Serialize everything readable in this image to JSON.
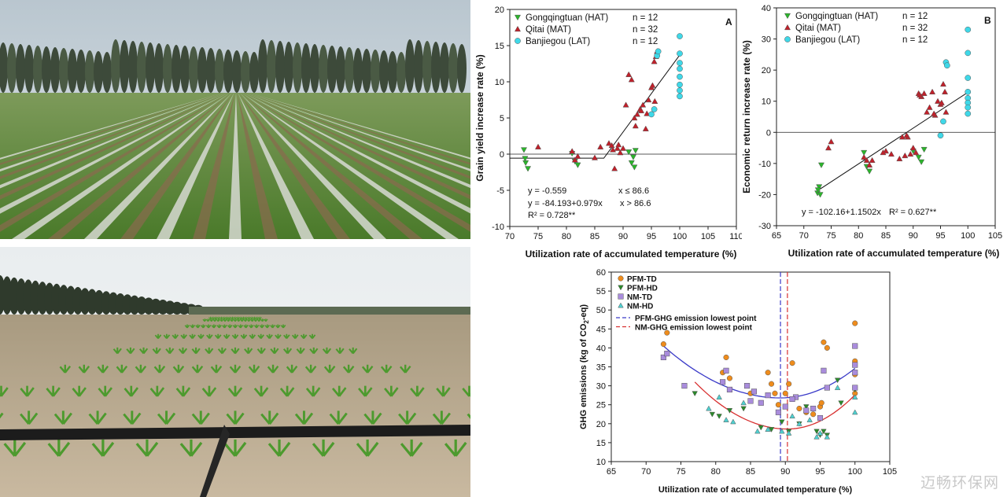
{
  "photos": [
    {
      "name": "maize-field-photo-top",
      "description_icon": "cornfield-plastic-mulch-poplar-windbreak"
    },
    {
      "name": "maize-field-photo-bottom",
      "description_icon": "maize-seedlings-drip-irrigation-pipe"
    }
  ],
  "watermark": "迈畅环保网",
  "colors": {
    "hat": "#2bb52b",
    "mat": "#c0202a",
    "lat": "#3fd8e8",
    "pfm_td": "#ee8c1c",
    "pfm_hd": "#2b8a2b",
    "nm_td": "#a98cdc",
    "nm_hd": "#4fd0d0",
    "pfm_line": "#3a3ac8",
    "nm_line": "#d83030"
  },
  "chart_data": [
    {
      "id": "A",
      "type": "scatter",
      "panel_label": "A",
      "xlabel": "Utilization rate of accumulated temperature (%)",
      "ylabel": "Grain yield increase rate (%)",
      "xlim": [
        70,
        110
      ],
      "ylim": [
        -10,
        20
      ],
      "xticks": [
        "70",
        "75",
        "80",
        "85",
        "90",
        "95",
        "100",
        "105",
        "110"
      ],
      "yticks": [
        "-10",
        "-5",
        "0",
        "5",
        "10",
        "15",
        "20"
      ],
      "legend": [
        {
          "series": "hat",
          "label": "Gongqingtuan (HAT)",
          "n": "n = 12"
        },
        {
          "series": "mat",
          "label": "Qitai (MAT)",
          "n": "n = 32"
        },
        {
          "series": "lat",
          "label": "Banjiegou (LAT)",
          "n": "n = 12"
        }
      ],
      "annotations": [
        {
          "text": "y = -0.559",
          "cond": "x ≤ 86.6"
        },
        {
          "text": "y = -84.193+0.979x",
          "cond": "x > 86.6"
        },
        {
          "text": "R² = 0.728**",
          "cond": ""
        }
      ],
      "fit": [
        [
          70,
          -0.559
        ],
        [
          86.6,
          -0.559
        ],
        [
          100,
          13.7
        ]
      ],
      "series": [
        {
          "name": "Gongqingtuan (HAT)",
          "key": "hat",
          "marker": "tri-down",
          "x": [
            72.5,
            72.8,
            73.2,
            81.0,
            81.5,
            91.0,
            91.5,
            92.0,
            92.2,
            72.7,
            82.0,
            91.8
          ],
          "y": [
            0.6,
            -1.2,
            -2.0,
            0.1,
            -1.0,
            0.3,
            -1.2,
            -1.8,
            0.5,
            -0.6,
            -1.5,
            -0.4
          ]
        },
        {
          "name": "Qitai (MAT)",
          "key": "mat",
          "marker": "tri-up",
          "x": [
            75.0,
            81.0,
            81.5,
            82.0,
            85.0,
            86.0,
            87.5,
            88.0,
            88.5,
            89.0,
            89.5,
            90.0,
            90.5,
            91.0,
            91.5,
            92.0,
            92.5,
            93.0,
            93.5,
            94.0,
            94.5,
            95.0,
            95.2,
            95.5,
            95.8,
            96.0,
            93.2,
            94.2,
            95.6,
            89.2,
            88.2,
            92.2
          ],
          "y": [
            1.0,
            0.4,
            -0.8,
            -0.3,
            -0.5,
            1.0,
            1.5,
            1.2,
            -2.0,
            0.8,
            0.2,
            0.8,
            6.8,
            11.0,
            10.3,
            5.0,
            5.5,
            6.2,
            6.8,
            3.5,
            7.5,
            9.2,
            9.5,
            12.8,
            13.5,
            14.2,
            6.0,
            5.6,
            7.3,
            1.3,
            0.6,
            3.9
          ]
        },
        {
          "name": "Banjiegou (LAT)",
          "key": "lat",
          "marker": "circle",
          "x": [
            95.0,
            95.5,
            96.0,
            96.2,
            100.0,
            100.0,
            100.0,
            100.0,
            100.0,
            100.0,
            100.0,
            100.0
          ],
          "y": [
            5.5,
            6.2,
            13.6,
            14.2,
            16.3,
            13.9,
            12.6,
            10.7,
            9.6,
            8.8,
            8.0,
            11.8
          ]
        }
      ]
    },
    {
      "id": "B",
      "type": "scatter",
      "panel_label": "B",
      "xlabel": "Utilization rate of accumulated temperature (%)",
      "ylabel": "Economic return increase rate (%)",
      "xlim": [
        65,
        105
      ],
      "ylim": [
        -30,
        40
      ],
      "xticks": [
        "65",
        "70",
        "75",
        "80",
        "85",
        "90",
        "95",
        "100",
        "105"
      ],
      "yticks": [
        "-30",
        "-20",
        "-10",
        "0",
        "10",
        "20",
        "30",
        "40"
      ],
      "legend": [
        {
          "series": "hat",
          "label": "Gongqingtuan (HAT)",
          "n": "n = 12"
        },
        {
          "series": "mat",
          "label": "Qitai (MAT)",
          "n": "n = 32"
        },
        {
          "series": "lat",
          "label": "Banjiegou (LAT)",
          "n": "n = 12"
        }
      ],
      "annotations": [
        {
          "text": "y = -102.16+1.1502x",
          "cond": "R² = 0.627**"
        }
      ],
      "fit": [
        [
          72.5,
          -18.77
        ],
        [
          100,
          12.86
        ]
      ],
      "series": [
        {
          "name": "Gongqingtuan (HAT)",
          "key": "hat",
          "marker": "tri-down",
          "x": [
            72.5,
            72.8,
            73.0,
            73.2,
            81.0,
            81.5,
            82.0,
            90.0,
            91.0,
            91.5,
            92.0,
            72.6
          ],
          "y": [
            -19.5,
            -17.5,
            -20.0,
            -10.5,
            -6.5,
            -11.0,
            -12.5,
            -6.0,
            -8.0,
            -9.5,
            -5.5,
            -18.5
          ]
        },
        {
          "name": "Qitai (MAT)",
          "key": "mat",
          "marker": "tri-up",
          "x": [
            74.5,
            75.0,
            81.0,
            81.5,
            82.0,
            85.0,
            86.0,
            87.5,
            88.0,
            88.5,
            89.0,
            89.5,
            90.0,
            90.5,
            91.0,
            91.5,
            92.0,
            92.5,
            93.0,
            93.5,
            94.0,
            94.5,
            95.0,
            95.5,
            95.8,
            96.0,
            82.5,
            84.5,
            88.8,
            93.8,
            95.2,
            91.2
          ],
          "y": [
            -5.0,
            -3.0,
            -8.0,
            -9.0,
            -10.5,
            -6.0,
            -7.0,
            -8.5,
            -1.5,
            -7.5,
            -1.5,
            -7.0,
            -5.0,
            -6.5,
            12.5,
            11.5,
            12.5,
            6.5,
            8.0,
            13.0,
            5.5,
            10.0,
            9.0,
            15.5,
            13.0,
            6.5,
            -9.0,
            -6.5,
            -1.0,
            6.0,
            9.5,
            12.0
          ]
        },
        {
          "name": "Banjiegou (LAT)",
          "key": "lat",
          "marker": "circle",
          "x": [
            95.0,
            95.5,
            96.0,
            96.2,
            100.0,
            100.0,
            100.0,
            100.0,
            100.0,
            100.0,
            100.0,
            100.0
          ],
          "y": [
            -1.0,
            3.5,
            22.5,
            21.5,
            33.0,
            25.5,
            17.5,
            13.0,
            11.0,
            9.5,
            6.0,
            8.0
          ]
        }
      ]
    },
    {
      "id": "C",
      "type": "scatter",
      "xlabel": "Utilization rate of accumulated temperature (%)",
      "ylabel": "GHG emissions (kg of CO2-eq)",
      "ylabel_main": "GHG emissions (kg of CO",
      "ylabel_sub": "2",
      "ylabel_tail": "-eq)",
      "xlim": [
        65,
        105
      ],
      "ylim": [
        10,
        60
      ],
      "xticks": [
        "65",
        "70",
        "75",
        "80",
        "85",
        "90",
        "95",
        "100",
        "105"
      ],
      "yticks": [
        "10",
        "15",
        "20",
        "25",
        "30",
        "35",
        "40",
        "45",
        "50",
        "55",
        "60"
      ],
      "legend": [
        {
          "series": "pfm_td",
          "label": "PFM-TD",
          "marker": "circle"
        },
        {
          "series": "pfm_hd",
          "label": "PFM-HD",
          "marker": "tri-down"
        },
        {
          "series": "nm_td",
          "label": "NM-TD",
          "marker": "square"
        },
        {
          "series": "nm_hd",
          "label": "NM-HD",
          "marker": "tri-up"
        },
        {
          "series": "pfm_line",
          "label": "PFM-GHG emission lowest point",
          "marker": "dash"
        },
        {
          "series": "nm_line",
          "label": "NM-GHG emission lowest point",
          "marker": "dash"
        }
      ],
      "vlines": [
        {
          "key": "pfm_line",
          "x": 89.3
        },
        {
          "key": "nm_line",
          "x": 90.3
        }
      ],
      "curves": [
        {
          "key": "pfm_line",
          "vertex_x": 89.3,
          "vertex_y": 26.8,
          "x_start": 72.5,
          "x_end": 100.0,
          "y_start": 40.5,
          "y_end": 34.6
        },
        {
          "key": "nm_line",
          "vertex_x": 90.3,
          "vertex_y": 18.6,
          "x_start": 77.0,
          "x_end": 100.0,
          "y_start": 31.0,
          "y_end": 27.6
        }
      ],
      "series": [
        {
          "name": "PFM-TD",
          "key": "pfm_td",
          "marker": "circle",
          "x": [
            72.5,
            73.0,
            81.0,
            81.5,
            82.0,
            85.0,
            87.5,
            88.5,
            89.0,
            90.0,
            90.5,
            91.0,
            92.0,
            93.0,
            94.0,
            95.0,
            95.5,
            96.0,
            100.0,
            100.0,
            100.0,
            100.0,
            95.2,
            88.0
          ],
          "y": [
            41.0,
            44.0,
            33.5,
            37.5,
            32.0,
            28.0,
            33.5,
            28.0,
            25.0,
            28.0,
            30.5,
            36.0,
            24.0,
            23.0,
            22.5,
            24.5,
            41.5,
            40.0,
            46.5,
            36.5,
            33.0,
            28.0,
            25.5,
            30.5
          ]
        },
        {
          "name": "PFM-HD",
          "key": "pfm_hd",
          "marker": "tri-down",
          "x": [
            77.0,
            79.5,
            80.5,
            82.0,
            84.0,
            86.5,
            88.0,
            89.5,
            90.5,
            92.0,
            93.0,
            94.5,
            95.0,
            95.5,
            96.0,
            97.5,
            100.0,
            98.0
          ],
          "y": [
            28.0,
            22.5,
            22.0,
            23.5,
            24.0,
            19.0,
            18.5,
            20.5,
            18.0,
            20.0,
            24.5,
            18.0,
            17.0,
            18.0,
            17.0,
            31.5,
            29.0,
            25.5
          ]
        },
        {
          "name": "NM-TD",
          "key": "nm_td",
          "marker": "square",
          "x": [
            72.5,
            73.0,
            75.5,
            81.0,
            81.5,
            82.0,
            85.0,
            85.5,
            86.5,
            87.5,
            89.0,
            90.0,
            91.5,
            93.0,
            94.0,
            95.0,
            95.5,
            96.0,
            100.0,
            100.0,
            100.0,
            100.0,
            91.0,
            84.5
          ],
          "y": [
            37.5,
            38.5,
            30.0,
            31.0,
            34.0,
            29.0,
            26.0,
            28.5,
            25.5,
            27.5,
            23.0,
            24.5,
            27.0,
            23.5,
            24.0,
            21.5,
            34.0,
            29.5,
            40.5,
            33.5,
            29.5,
            35.5,
            26.5,
            30.0
          ]
        },
        {
          "name": "NM-HD",
          "key": "nm_hd",
          "marker": "tri-up",
          "x": [
            79.0,
            80.5,
            81.5,
            82.5,
            84.0,
            86.0,
            87.5,
            89.5,
            90.5,
            92.0,
            93.5,
            94.5,
            95.0,
            96.0,
            97.5,
            100.0,
            100.0,
            91.0
          ],
          "y": [
            24.0,
            27.0,
            21.0,
            20.5,
            25.5,
            18.0,
            18.5,
            18.0,
            17.5,
            20.0,
            21.0,
            16.5,
            17.5,
            16.5,
            29.5,
            27.0,
            23.0,
            22.0
          ]
        }
      ]
    }
  ]
}
